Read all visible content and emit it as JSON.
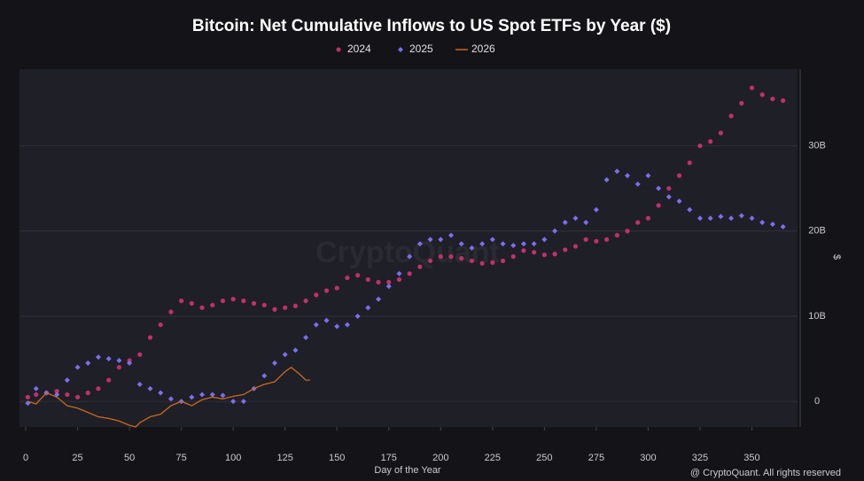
{
  "chart_data": {
    "type": "scatter",
    "title": "Bitcoin: Net Cumulative Inflows to US Spot ETFs by Year ($)",
    "x_label": "Day of the Year",
    "y_label": "$",
    "watermark": "CryptoQuant",
    "credit": "@ CryptoQuant. All rights reserved",
    "xlim": [
      -3,
      372
    ],
    "ylim": [
      -3,
      39
    ],
    "xticks": [
      0,
      25,
      50,
      75,
      100,
      125,
      150,
      175,
      200,
      225,
      250,
      275,
      300,
      325,
      350
    ],
    "yticks": [
      0,
      {
        "value": 10,
        "label": "10B"
      },
      {
        "value": 20,
        "label": "20B"
      },
      {
        "value": 30,
        "label": "30B"
      }
    ],
    "grid": true,
    "legend": "top",
    "series": [
      {
        "name": "2024",
        "color": "#c2306a",
        "mark": "circle",
        "x": [
          1,
          5,
          10,
          15,
          20,
          25,
          30,
          35,
          40,
          45,
          50,
          55,
          60,
          65,
          70,
          75,
          80,
          85,
          90,
          95,
          100,
          105,
          110,
          115,
          120,
          125,
          130,
          135,
          140,
          145,
          150,
          155,
          160,
          165,
          170,
          175,
          180,
          185,
          190,
          195,
          200,
          205,
          210,
          215,
          220,
          225,
          230,
          235,
          240,
          245,
          250,
          255,
          260,
          265,
          270,
          275,
          280,
          285,
          290,
          295,
          300,
          305,
          310,
          315,
          320,
          325,
          330,
          335,
          340,
          345,
          350,
          355,
          360,
          365
        ],
        "values": [
          0.5,
          0.8,
          1.0,
          1.2,
          0.8,
          0.5,
          1.0,
          1.5,
          2.5,
          4.0,
          4.8,
          5.5,
          7.5,
          9.0,
          10.5,
          11.8,
          11.5,
          11.0,
          11.3,
          11.8,
          12.0,
          11.8,
          11.5,
          11.3,
          10.8,
          11.0,
          11.2,
          11.8,
          12.5,
          13.0,
          13.3,
          14.5,
          14.8,
          14.3,
          14.0,
          14.0,
          14.3,
          15.0,
          15.8,
          16.5,
          17.0,
          17.0,
          16.8,
          16.5,
          16.2,
          16.3,
          16.5,
          17.0,
          17.7,
          17.5,
          17.2,
          17.3,
          17.8,
          18.2,
          19.0,
          18.8,
          19.0,
          19.5,
          20.0,
          21.0,
          21.5,
          23.0,
          25.0,
          26.5,
          28.0,
          30.0,
          30.5,
          31.5,
          33.5,
          35.0,
          36.8,
          36.0,
          35.5,
          35.3
        ]
      },
      {
        "name": "2025",
        "color": "#7b6ff0",
        "mark": "diamond",
        "x": [
          1,
          5,
          10,
          15,
          20,
          25,
          30,
          35,
          40,
          45,
          50,
          55,
          60,
          65,
          70,
          75,
          80,
          85,
          90,
          95,
          100,
          105,
          110,
          115,
          120,
          125,
          130,
          135,
          140,
          145,
          150,
          155,
          160,
          165,
          170,
          175,
          180,
          185,
          190,
          195,
          200,
          205,
          210,
          215,
          220,
          225,
          230,
          235,
          240,
          245,
          250,
          255,
          260,
          265,
          270,
          275,
          280,
          285,
          290,
          295,
          300,
          305,
          310,
          315,
          320,
          325,
          330,
          335,
          340,
          345,
          350,
          355,
          360,
          365
        ],
        "values": [
          -0.2,
          1.5,
          1.0,
          0.8,
          2.5,
          4.0,
          4.5,
          5.2,
          5.0,
          4.8,
          4.5,
          2.0,
          1.5,
          1.0,
          0.3,
          0.0,
          0.5,
          0.8,
          0.8,
          0.7,
          0.0,
          0.0,
          1.5,
          3.0,
          4.5,
          5.5,
          6.0,
          7.5,
          9.0,
          9.5,
          8.8,
          9.0,
          10.0,
          11.0,
          12.0,
          13.5,
          15.0,
          17.0,
          18.5,
          19.0,
          19.0,
          19.5,
          18.5,
          18.0,
          18.5,
          19.0,
          18.5,
          18.3,
          18.5,
          18.5,
          19.0,
          20.0,
          21.0,
          21.5,
          21.0,
          22.5,
          26.0,
          27.0,
          26.5,
          25.5,
          26.5,
          25.0,
          24.0,
          23.5,
          22.5,
          21.5,
          21.5,
          21.7,
          21.5,
          21.8,
          21.5,
          21.0,
          20.8,
          20.5
        ]
      },
      {
        "name": "2026",
        "color": "#c86a1f",
        "mark": "line",
        "x": [
          1,
          5,
          10,
          15,
          20,
          25,
          30,
          35,
          40,
          45,
          50,
          53,
          55,
          60,
          65,
          70,
          75,
          80,
          85,
          90,
          95,
          100,
          105,
          110,
          115,
          120,
          125,
          128,
          132,
          135,
          137
        ],
        "values": [
          0,
          -0.3,
          1.0,
          0.5,
          -0.5,
          -0.8,
          -1.3,
          -1.8,
          -2.0,
          -2.3,
          -2.8,
          -3.0,
          -2.5,
          -1.8,
          -1.5,
          -0.5,
          0.0,
          -0.5,
          0.2,
          0.5,
          0.3,
          0.6,
          0.8,
          1.5,
          2.0,
          2.3,
          3.5,
          4.0,
          3.2,
          2.5,
          2.5
        ]
      }
    ]
  }
}
